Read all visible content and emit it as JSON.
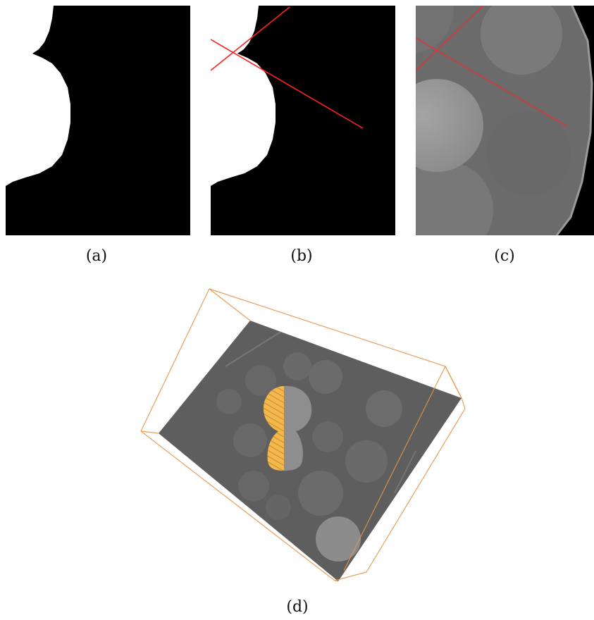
{
  "captions": {
    "a": "(a)",
    "b": "(b)",
    "c": "(c)",
    "d": "(d)"
  },
  "colors": {
    "mask_foreground": "#ffffff",
    "mask_background": "#000000",
    "crosshair": "#ff2020",
    "ct_gray": "#6e6e6e",
    "segmentation": "#f2b84b",
    "bounding_box": "#e8944a"
  }
}
